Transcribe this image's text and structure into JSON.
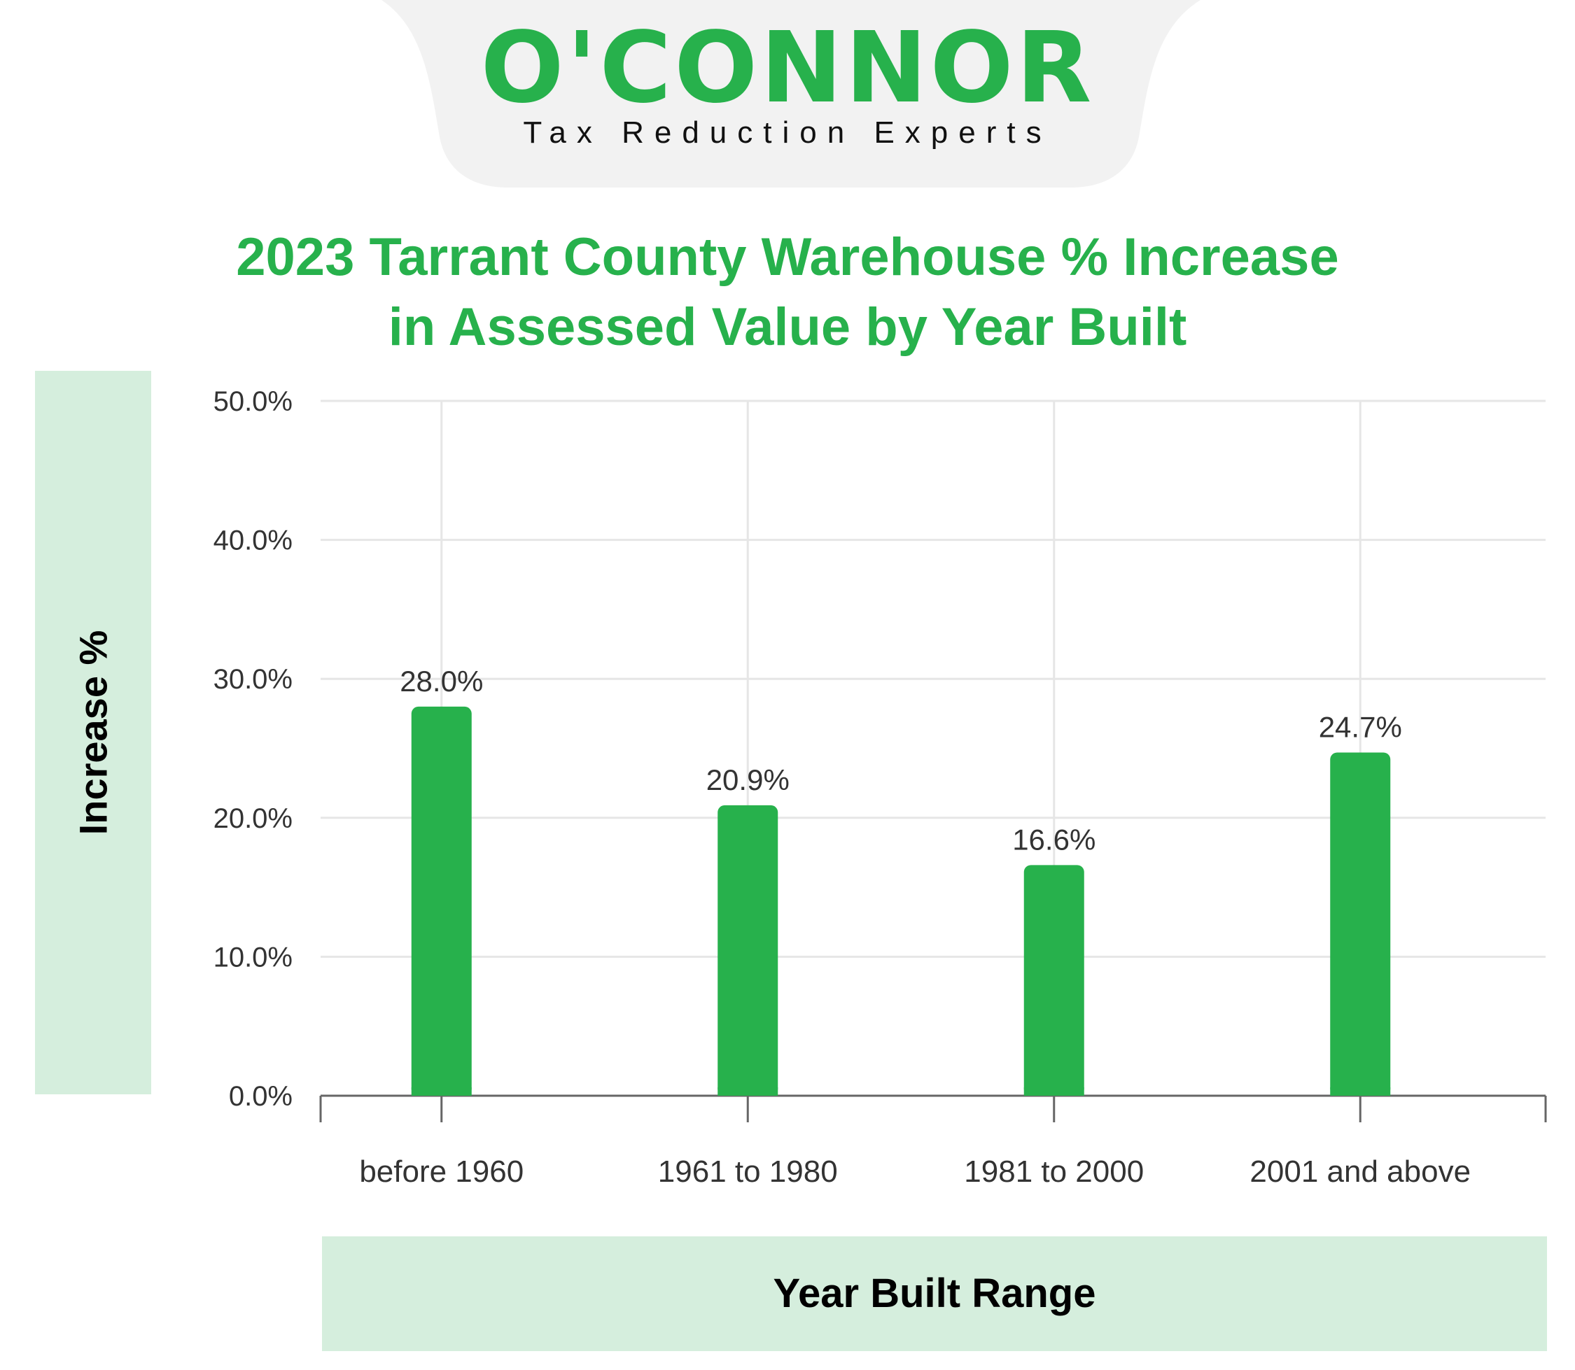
{
  "brand": {
    "name": "O'CONNOR",
    "tagline": "Tax Reduction Experts",
    "color": "#27b14c",
    "badge_color": "#f2f2f2"
  },
  "chart_data": {
    "type": "bar",
    "title": "2023 Tarrant County Warehouse % Increase in Assessed Value by Year Built",
    "title_lines": [
      "2023 Tarrant County Warehouse % Increase",
      "in Assessed Value by Year Built"
    ],
    "xlabel": "Year Built Range",
    "ylabel": "Increase %",
    "categories": [
      "before 1960",
      "1961 to 1980",
      "1981 to 2000",
      "2001 and above"
    ],
    "values": [
      28.0,
      20.9,
      16.6,
      24.7
    ],
    "data_labels": [
      "28.0%",
      "20.9%",
      "16.6%",
      "24.7%"
    ],
    "ylim": [
      0,
      50
    ],
    "yticks": [
      "0.0%",
      "10.0%",
      "20.0%",
      "30.0%",
      "40.0%",
      "50.0%"
    ],
    "grid": true,
    "colors": {
      "bar": "#27b14c",
      "title": "#27b14c",
      "label_panel": "#d5eedd",
      "grid": "#e6e6e6",
      "axis": "#666666",
      "tick_text": "#333333"
    }
  }
}
